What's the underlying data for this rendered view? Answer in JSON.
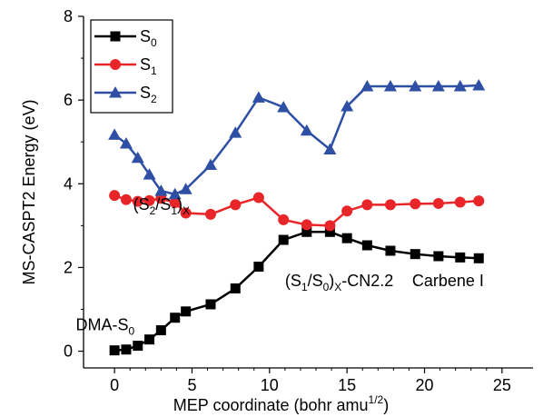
{
  "chart_data": {
    "type": "line",
    "xlabel": "MEP coordinate (bohr amu",
    "xlabel_exponent": "1/2",
    "xlabel_close": ")",
    "ylabel": "MS-CASPT2 Energy (eV)",
    "xlim": [
      -2,
      27
    ],
    "ylim": [
      -0.4,
      8
    ],
    "xticks": [
      0,
      5,
      10,
      15,
      20,
      25
    ],
    "yticks": [
      0,
      2,
      4,
      6,
      8
    ],
    "grid": false,
    "legend_position": "top-left",
    "series": [
      {
        "name": "S",
        "subscript": "0",
        "color": "#000000",
        "marker": "square",
        "x": [
          0,
          0.75,
          1.5,
          2.25,
          3.0,
          3.9,
          4.6,
          6.2,
          7.8,
          9.3,
          10.9,
          12.4,
          13.9,
          15.0,
          16.3,
          17.8,
          19.4,
          20.9,
          22.3,
          23.5
        ],
        "y": [
          0.02,
          0.04,
          0.13,
          0.28,
          0.5,
          0.8,
          0.95,
          1.12,
          1.5,
          2.02,
          2.66,
          2.85,
          2.85,
          2.7,
          2.53,
          2.4,
          2.32,
          2.27,
          2.24,
          2.22
        ]
      },
      {
        "name": "S",
        "subscript": "1",
        "color": "#e8262a",
        "marker": "circle",
        "x": [
          0,
          0.75,
          1.5,
          2.25,
          3.0,
          3.9,
          4.6,
          6.2,
          7.8,
          9.3,
          10.9,
          12.4,
          13.9,
          15.0,
          16.3,
          17.8,
          19.4,
          20.9,
          22.3,
          23.5
        ],
        "y": [
          3.72,
          3.62,
          3.58,
          3.6,
          3.65,
          3.55,
          3.3,
          3.27,
          3.5,
          3.67,
          3.14,
          3.02,
          3.0,
          3.35,
          3.5,
          3.5,
          3.52,
          3.53,
          3.56,
          3.59
        ]
      },
      {
        "name": "S",
        "subscript": "2",
        "color": "#2e4fa3",
        "marker": "triangle",
        "x": [
          0,
          0.75,
          1.5,
          2.25,
          3.0,
          3.9,
          4.6,
          6.2,
          7.8,
          9.3,
          10.9,
          12.4,
          13.9,
          15.0,
          16.3,
          17.8,
          19.4,
          20.9,
          22.3,
          23.5
        ],
        "y": [
          5.17,
          4.96,
          4.62,
          4.22,
          3.83,
          3.75,
          3.87,
          4.45,
          5.22,
          6.06,
          5.83,
          5.27,
          4.82,
          5.85,
          6.33,
          6.33,
          6.33,
          6.33,
          6.33,
          6.35
        ]
      }
    ],
    "annotations": [
      {
        "id": "s2s1",
        "base": "(S",
        "sub1": "2",
        "mid": "/S",
        "sub2": "1",
        "close": ")",
        "sub3": "X",
        "tail": "",
        "x": 1.2,
        "y": 3.38
      },
      {
        "id": "s1s0",
        "base": "(S",
        "sub1": "1",
        "mid": "/S",
        "sub2": "0",
        "close": ")",
        "sub3": "X",
        "tail": "-CN2.2",
        "x": 11.0,
        "y": 1.55
      },
      {
        "id": "carbene",
        "text": "Carbene I",
        "x": 19.2,
        "y": 1.55
      },
      {
        "id": "dma",
        "base": "DMA-S",
        "sub1": "0",
        "x": -2.5,
        "y": 0.5
      }
    ]
  }
}
